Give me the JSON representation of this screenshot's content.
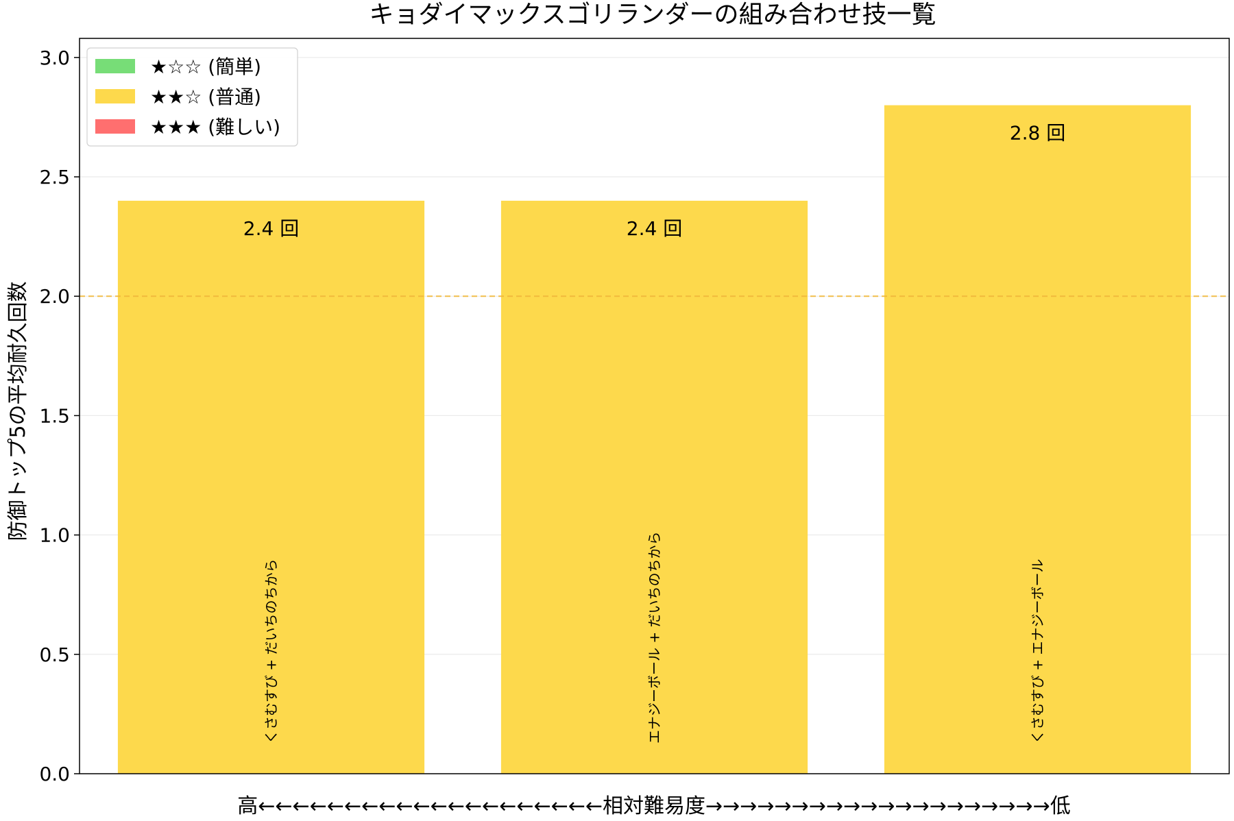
{
  "chart_data": {
    "type": "bar",
    "title": "キョダイマックスゴリランダーの組み合わせ技一覧",
    "ylabel": "防御トップ5の平均耐久回数",
    "xlabel": "高←←←←←←←←←←←←←←←←←←←←相対難易度→→→→→→→→→→→→→→→→→→→→低",
    "ylim": [
      0,
      3.08
    ],
    "yticks": [
      "0.0",
      "0.5",
      "1.0",
      "1.5",
      "2.0",
      "2.5",
      "3.0"
    ],
    "ytick_values": [
      0,
      0.5,
      1.0,
      1.5,
      2.0,
      2.5,
      3.0
    ],
    "reference_line": {
      "value": 2.0,
      "color": "#f0b73a",
      "style": "dashed"
    },
    "grid": "horizontal",
    "legend_position": "top-left",
    "legend": [
      {
        "label": "★☆☆ (簡単)",
        "color": "#77dd77"
      },
      {
        "label": "★★☆ (普通)",
        "color": "#fdd94c"
      },
      {
        "label": "★★★ (難しい)",
        "color": "#ff6f6f"
      }
    ],
    "categories": [
      "くさむすび + だいちのちから",
      "エナジーボール + だいちのちから",
      "くさむすび + エナジーボール"
    ],
    "values": [
      2.4,
      2.4,
      2.8
    ],
    "value_labels": [
      "2.4 回",
      "2.4 回",
      "2.8 回"
    ],
    "bar_colors": [
      "#fdd94c",
      "#fdd94c",
      "#fdd94c"
    ]
  }
}
